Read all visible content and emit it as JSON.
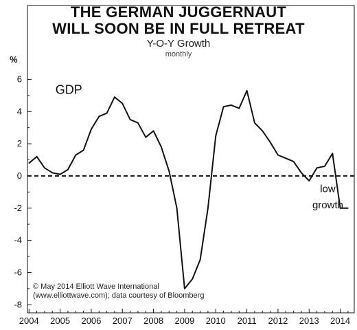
{
  "chart_data": {
    "type": "line",
    "title_line1": "THE GERMAN JUGGERNAUT",
    "title_line2": "WILL SOON BE IN FULL RETREAT",
    "subtitle": "Y-O-Y Growth",
    "frequency": "monthly",
    "ylabel": "%",
    "ylim": [
      -8.5,
      7
    ],
    "xlim": [
      2003.95,
      2014.45
    ],
    "yticks": [
      6,
      4,
      2,
      0,
      -2,
      -4,
      -6,
      -8
    ],
    "xticks": [
      "2004",
      "2005",
      "2006",
      "2007",
      "2008",
      "2009",
      "2010",
      "2011",
      "2012",
      "2013",
      "2014"
    ],
    "zero_line": "dashed",
    "grid": false,
    "series": [
      {
        "name": "GDP",
        "color": "#111111",
        "x": [
          2004.0,
          2004.25,
          2004.5,
          2004.75,
          2005.0,
          2005.25,
          2005.5,
          2005.75,
          2006.0,
          2006.25,
          2006.5,
          2006.75,
          2007.0,
          2007.25,
          2007.5,
          2007.75,
          2008.0,
          2008.25,
          2008.5,
          2008.75,
          2009.0,
          2009.25,
          2009.5,
          2009.75,
          2010.0,
          2010.25,
          2010.5,
          2010.75,
          2011.0,
          2011.25,
          2011.5,
          2011.75,
          2012.0,
          2012.25,
          2012.5,
          2012.75,
          2013.0,
          2013.25,
          2013.5,
          2013.75,
          2014.0,
          2014.25
        ],
        "values": [
          0.8,
          1.2,
          0.5,
          0.2,
          0.1,
          0.4,
          1.3,
          1.6,
          2.9,
          3.7,
          3.9,
          4.9,
          4.5,
          3.5,
          3.3,
          2.4,
          2.8,
          1.8,
          0.3,
          -2.0,
          -7.0,
          -6.4,
          -5.2,
          -2.0,
          2.5,
          4.3,
          4.4,
          4.2,
          5.3,
          3.3,
          2.8,
          2.1,
          1.3,
          1.1,
          0.9,
          0.2,
          -0.3,
          0.5,
          0.6,
          1.4,
          -2.0,
          -2.0
        ]
      }
    ],
    "annotations": [
      {
        "text": "GDP"
      },
      {
        "text_line1": "low",
        "text_line2": "growth"
      }
    ],
    "credit_line1": "© May 2014 Elliott Wave International",
    "credit_line2": "(www.elliottwave.com); data courtesy of Bloomberg"
  }
}
